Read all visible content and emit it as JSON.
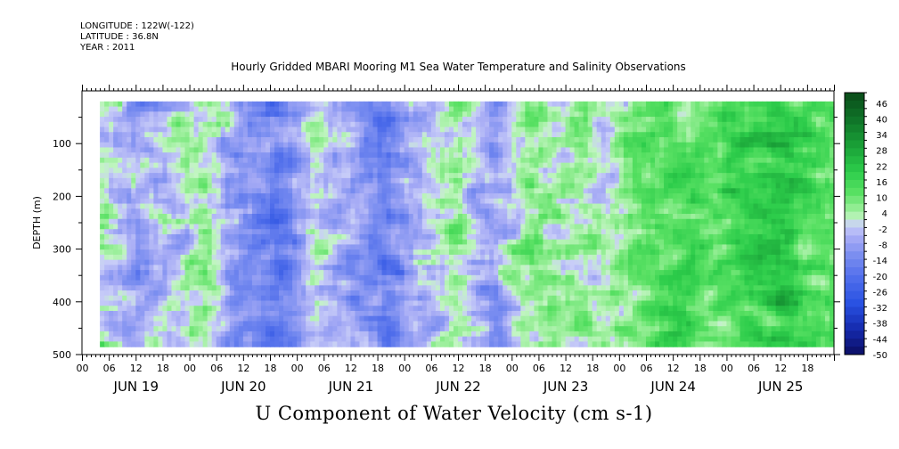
{
  "header": {
    "longitude": "LONGITUDE : 122W(-122)",
    "latitude": "LATITUDE : 36.8N",
    "year": "YEAR : 2011",
    "title": "Hourly Gridded MBARI Mooring M1 Sea Water Temperature and Salinity Observations"
  },
  "chart_data": {
    "type": "heatmap",
    "title": "Hourly Gridded MBARI Mooring M1 Sea Water Temperature and Salinity Observations",
    "subtitle": "U Component of Water Velocity (cm s-1)",
    "xlabel": "",
    "ylabel": "DEPTH (m)",
    "y_ticks": [
      "100",
      "200",
      "300",
      "400",
      "500"
    ],
    "ylim": [
      0,
      500
    ],
    "y_inverted": true,
    "x_hour_ticks": [
      "00",
      "06",
      "12",
      "18",
      "00",
      "06",
      "12",
      "18",
      "00",
      "06",
      "12",
      "18",
      "00",
      "06",
      "12",
      "18",
      "00",
      "06",
      "12",
      "18",
      "00",
      "06",
      "12",
      "18",
      "00",
      "06",
      "12",
      "18"
    ],
    "x_day_labels": [
      "JUN 19",
      "JUN 20",
      "JUN 21",
      "JUN 22",
      "JUN 23",
      "JUN 24",
      "JUN 25"
    ],
    "colorbar": {
      "levels": [
        "46",
        "40",
        "34",
        "28",
        "22",
        "16",
        "10",
        "4",
        "-2",
        "-8",
        "-14",
        "-20",
        "-26",
        "-32",
        "-38",
        "-44",
        "-50"
      ],
      "range": [
        -50,
        50
      ],
      "step": 3
    },
    "data_depth_range": [
      20,
      485
    ],
    "column_means": [
      {
        "day_hour": "JUN 19 04",
        "value": 2
      },
      {
        "day_hour": "JUN 19 12",
        "value": -8
      },
      {
        "day_hour": "JUN 19 20",
        "value": 0
      },
      {
        "day_hour": "JUN 20 04",
        "value": 4
      },
      {
        "day_hour": "JUN 20 12",
        "value": -12
      },
      {
        "day_hour": "JUN 20 20",
        "value": -16
      },
      {
        "day_hour": "JUN 21 04",
        "value": 0
      },
      {
        "day_hour": "JUN 21 12",
        "value": -6
      },
      {
        "day_hour": "JUN 21 20",
        "value": -14
      },
      {
        "day_hour": "JUN 22 04",
        "value": -4
      },
      {
        "day_hour": "JUN 22 12",
        "value": 6
      },
      {
        "day_hour": "JUN 22 20",
        "value": -10
      },
      {
        "day_hour": "JUN 23 04",
        "value": 8
      },
      {
        "day_hour": "JUN 23 12",
        "value": 4
      },
      {
        "day_hour": "JUN 23 20",
        "value": 2
      },
      {
        "day_hour": "JUN 24 04",
        "value": 10
      },
      {
        "day_hour": "JUN 24 12",
        "value": 16
      },
      {
        "day_hour": "JUN 24 20",
        "value": 12
      },
      {
        "day_hour": "JUN 25 04",
        "value": 18
      },
      {
        "day_hour": "JUN 25 12",
        "value": 20
      },
      {
        "day_hour": "JUN 25 20",
        "value": 14
      }
    ],
    "colors": {
      "negative_strong": "#0b1a7a",
      "negative_mid": "#3a5fe0",
      "negative_weak": "#aab0f0",
      "positive_weak": "#a8f0a8",
      "positive_mid": "#2fd84f",
      "positive_strong": "#0b5a1e"
    }
  }
}
